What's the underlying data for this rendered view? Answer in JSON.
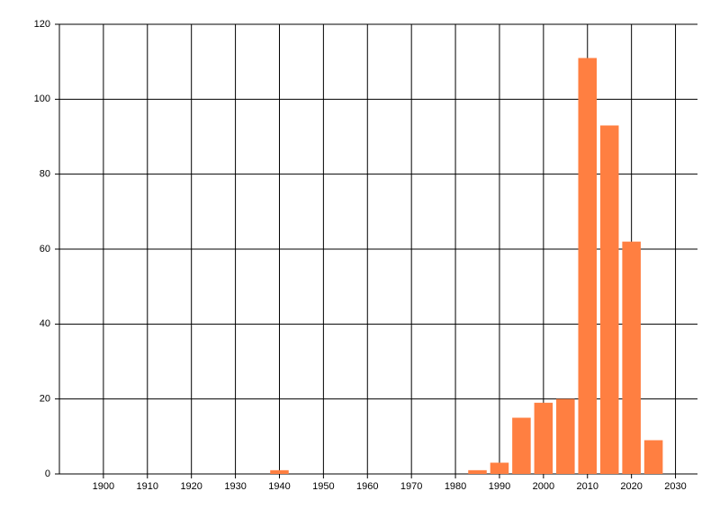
{
  "chart_data": {
    "type": "bar",
    "x": [
      1940,
      1985,
      1990,
      1995,
      2000,
      2005,
      2010,
      2015,
      2020,
      2025
    ],
    "values": [
      1,
      1,
      3,
      15,
      19,
      20,
      111,
      93,
      62,
      9
    ],
    "color": "#ff7f41",
    "xlim": [
      1890,
      2035
    ],
    "xticks": [
      1900,
      1910,
      1920,
      1930,
      1940,
      1950,
      1960,
      1970,
      1980,
      1990,
      2000,
      2010,
      2020,
      2030
    ],
    "ylim": [
      0,
      120
    ],
    "yticks": [
      0,
      20,
      40,
      60,
      80,
      100,
      120
    ],
    "grid": true
  }
}
